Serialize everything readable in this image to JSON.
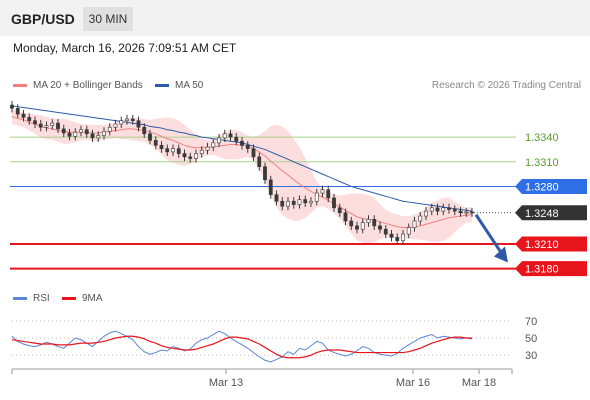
{
  "header": {
    "pair": "GBP/USD",
    "timeframe": "30 MIN",
    "datetime": "Monday, March 16, 2026 7:09:51 AM CET"
  },
  "legend": {
    "ma20": "MA 20 + Bollinger Bands",
    "ma50": "MA 50",
    "rsi": "RSI",
    "ma9": "9MA",
    "credit": "Research © 2026 Trading Central"
  },
  "colors": {
    "ma20": "#f08080",
    "bollinger_fill": "#fcd6d6",
    "ma50": "#2e5aa8",
    "candle": "#3a3a3a",
    "resistance": "#a8d08d",
    "pivot": "#2f6fe6",
    "support": "#e8141c",
    "current": "#333333",
    "rsi": "#5b85d6",
    "rsi_ma": "#e8141c",
    "arrow": "#2e5aa8"
  },
  "chart_data": [
    {
      "type": "candlestick",
      "title": "GBP/USD 30 MIN",
      "x_ticks": [
        "Mar 13",
        "Mar 16",
        "Mar 18"
      ],
      "ylim": [
        1.3165,
        1.339
      ],
      "levels": [
        {
          "label": "1.3340",
          "value": 1.334,
          "kind": "resistance"
        },
        {
          "label": "1.3310",
          "value": 1.331,
          "kind": "resistance"
        },
        {
          "label": "1.3280",
          "value": 1.328,
          "kind": "pivot"
        },
        {
          "label": "1.3248",
          "value": 1.3248,
          "kind": "current"
        },
        {
          "label": "1.3210",
          "value": 1.321,
          "kind": "support"
        },
        {
          "label": "1.3180",
          "value": 1.318,
          "kind": "support"
        }
      ],
      "forecast": {
        "direction": "down",
        "from": 1.3248,
        "to": 1.319
      },
      "closes": [
        1.3375,
        1.3368,
        1.3364,
        1.336,
        1.3356,
        1.3352,
        1.3354,
        1.3357,
        1.335,
        1.3345,
        1.3341,
        1.3346,
        1.3349,
        1.3344,
        1.3339,
        1.3342,
        1.3347,
        1.3352,
        1.3356,
        1.336,
        1.3362,
        1.336,
        1.3352,
        1.3344,
        1.3336,
        1.333,
        1.3326,
        1.3322,
        1.3326,
        1.332,
        1.3316,
        1.3314,
        1.332,
        1.3324,
        1.3328,
        1.3333,
        1.3339,
        1.3344,
        1.334,
        1.3335,
        1.333,
        1.3326,
        1.3316,
        1.3304,
        1.3288,
        1.327,
        1.3262,
        1.3256,
        1.3262,
        1.3258,
        1.3264,
        1.326,
        1.3262,
        1.3272,
        1.3276,
        1.3266,
        1.3254,
        1.3248,
        1.3238,
        1.3232,
        1.3228,
        1.3236,
        1.324,
        1.3232,
        1.3228,
        1.3222,
        1.3218,
        1.3214,
        1.3222,
        1.323,
        1.3238,
        1.3244,
        1.325,
        1.3254,
        1.325,
        1.3254,
        1.3252,
        1.325,
        1.3248,
        1.3249,
        1.3248
      ],
      "ma20": [
        1.3365,
        1.3363,
        1.3361,
        1.3358,
        1.3356,
        1.3353,
        1.3351,
        1.335,
        1.3348,
        1.3347,
        1.3346,
        1.3346,
        1.3346,
        1.3346,
        1.3345,
        1.3345,
        1.3346,
        1.3347,
        1.3348,
        1.3349,
        1.335,
        1.335,
        1.3349,
        1.3348,
        1.3346,
        1.3344,
        1.3341,
        1.3338,
        1.3336,
        1.3333,
        1.333,
        1.3328,
        1.3327,
        1.3327,
        1.3327,
        1.3328,
        1.3329,
        1.333,
        1.3331,
        1.3331,
        1.333,
        1.3329,
        1.3326,
        1.3322,
        1.3317,
        1.3311,
        1.3305,
        1.3299,
        1.3294,
        1.3288,
        1.3283,
        1.3278,
        1.3274,
        1.327,
        1.3267,
        1.3263,
        1.3259,
        1.3255,
        1.3251,
        1.3247,
        1.3243,
        1.3241,
        1.324,
        1.3239,
        1.3237,
        1.3235,
        1.3233,
        1.3231,
        1.323,
        1.323,
        1.3231,
        1.3232,
        1.3234,
        1.3236,
        1.3238,
        1.324,
        1.3242,
        1.3243,
        1.3244,
        1.3245,
        1.3246
      ],
      "ma50": [
        1.3378,
        1.3377,
        1.3376,
        1.3375,
        1.3374,
        1.3373,
        1.3372,
        1.3371,
        1.337,
        1.3369,
        1.3368,
        1.3367,
        1.3366,
        1.3365,
        1.3364,
        1.3363,
        1.3362,
        1.3361,
        1.336,
        1.3359,
        1.3358,
        1.3357,
        1.3356,
        1.3355,
        1.3353,
        1.3352,
        1.3351,
        1.3349,
        1.3348,
        1.3346,
        1.3345,
        1.3343,
        1.3342,
        1.334,
        1.3339,
        1.3338,
        1.3337,
        1.3336,
        1.3335,
        1.3334,
        1.3333,
        1.3331,
        1.3329,
        1.3327,
        1.3325,
        1.3322,
        1.3319,
        1.3316,
        1.3313,
        1.331,
        1.3307,
        1.3304,
        1.3301,
        1.3298,
        1.3295,
        1.3292,
        1.3289,
        1.3286,
        1.3283,
        1.328,
        1.3278,
        1.3276,
        1.3274,
        1.3272,
        1.327,
        1.3268,
        1.3266,
        1.3264,
        1.3262,
        1.3261,
        1.326,
        1.3259,
        1.3258,
        1.3257,
        1.3256,
        1.3255,
        1.3254,
        1.3253,
        1.3252,
        1.3251,
        1.325
      ]
    },
    {
      "type": "line",
      "title": "RSI",
      "y_ticks": [
        30,
        50,
        70
      ],
      "ylim": [
        22,
        78
      ],
      "series": [
        {
          "name": "RSI",
          "values": [
            52,
            46,
            43,
            41,
            40,
            42,
            45,
            43,
            40,
            38,
            44,
            50,
            48,
            44,
            40,
            46,
            52,
            56,
            58,
            55,
            52,
            48,
            40,
            34,
            31,
            33,
            36,
            35,
            40,
            38,
            35,
            37,
            44,
            48,
            50,
            54,
            58,
            55,
            50,
            46,
            42,
            38,
            33,
            28,
            24,
            22,
            25,
            28,
            34,
            31,
            38,
            36,
            41,
            46,
            44,
            36,
            33,
            31,
            29,
            31,
            35,
            40,
            38,
            33,
            31,
            30,
            29,
            32,
            38,
            42,
            46,
            50,
            52,
            54,
            50,
            52,
            51,
            50,
            49,
            50,
            49
          ]
        },
        {
          "name": "9MA",
          "values": [
            48,
            47,
            46,
            45,
            44,
            43,
            43,
            43,
            42,
            42,
            42,
            43,
            44,
            44,
            44,
            45,
            46,
            48,
            50,
            51,
            52,
            52,
            51,
            49,
            46,
            44,
            41,
            39,
            38,
            37,
            36,
            36,
            37,
            39,
            41,
            43,
            46,
            49,
            51,
            51,
            50,
            49,
            46,
            43,
            39,
            35,
            31,
            28,
            27,
            27,
            27,
            28,
            30,
            33,
            35,
            36,
            36,
            36,
            35,
            34,
            33,
            33,
            33,
            33,
            33,
            33,
            33,
            33,
            33,
            34,
            36,
            38,
            41,
            44,
            46,
            48,
            50,
            51,
            51,
            50,
            50
          ]
        }
      ]
    }
  ]
}
